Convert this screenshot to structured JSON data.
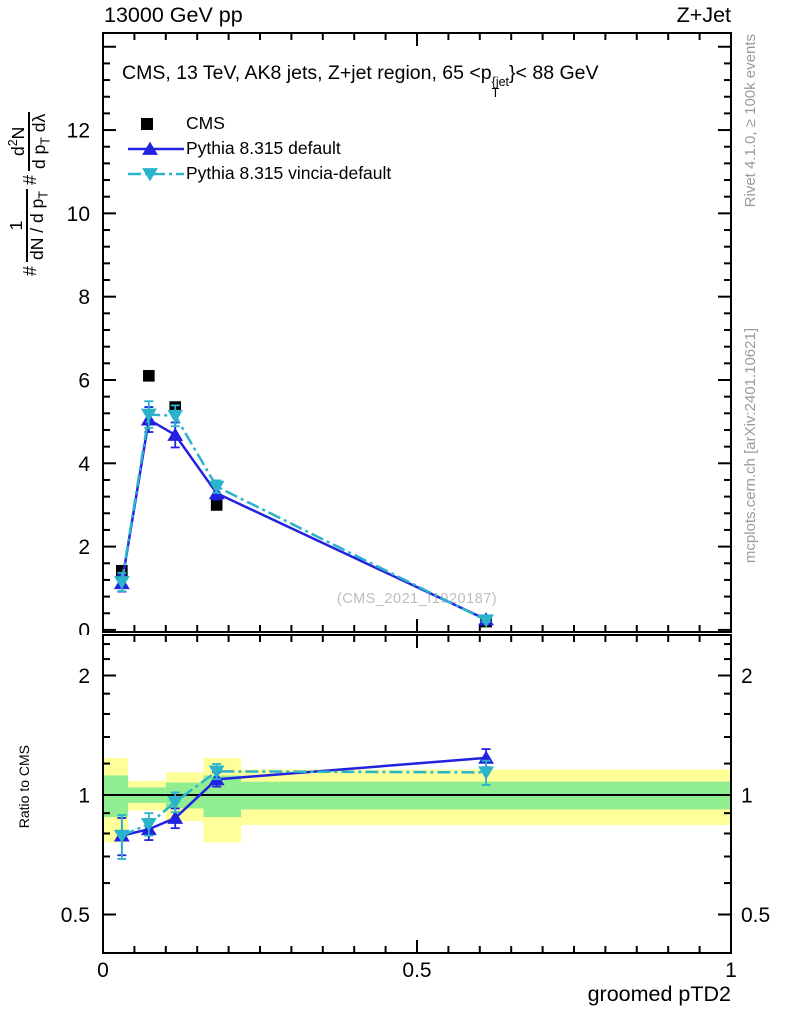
{
  "header": {
    "left": "13000 GeV pp",
    "right": "Z+Jet"
  },
  "panel_title": {
    "prefix": "CMS, 13 TeV, AK8 jets, Z+jet region, 65 <p",
    "sup": "{jet",
    "sub": "T",
    "suffix": "}< 88 GeV"
  },
  "y_axis_label": {
    "hash1": "#",
    "frac1_num": "1",
    "frac1_den_main": "dN / d p",
    "frac1_den_sub": "T",
    "hash2": "#",
    "frac2_num_main": "d",
    "frac2_num_sup": "2",
    "frac2_num_tail": "N",
    "frac2_den_main": "d p",
    "frac2_den_sub": "T",
    "frac2_den_tail": " dλ"
  },
  "legend": {
    "items": [
      {
        "label": "CMS",
        "marker": "square",
        "color": "#000000",
        "line": "none"
      },
      {
        "label": "Pythia 8.315 default",
        "marker": "triangle-up",
        "color": "#2222e0",
        "line": "solid"
      },
      {
        "label": "Pythia 8.315 vincia-default",
        "marker": "triangle-down",
        "color": "#2bb3cb",
        "line": "dashdot"
      }
    ]
  },
  "side_notes": {
    "top": "Rivet 4.1.0, ≥ 100k events",
    "bottom": "mcplots.cern.ch [arXiv:2401.10621]"
  },
  "watermark": "(CMS_2021_I1920187)",
  "x_axis": {
    "label": "groomed pTD2",
    "ticks": [
      {
        "v": 0,
        "label": "0"
      },
      {
        "v": 0.5,
        "label": "0.5"
      },
      {
        "v": 1,
        "label": "1"
      }
    ],
    "minor_step": 0.05,
    "range": [
      0,
      1
    ]
  },
  "ratio_axis": {
    "ylabel": "Ratio to CMS",
    "ticks_left": [
      "0.5",
      "1",
      "2"
    ],
    "ticks_right": [
      "0.5",
      "1",
      "2"
    ]
  },
  "colors": {
    "blue": "#2222e0",
    "cyan": "#2bb3cb",
    "yellow": "#ffff99",
    "green": "#90ee90",
    "notes": "#9b9b9b",
    "watermark": "#bdbdbd"
  },
  "chart_data": [
    {
      "type": "line",
      "panel": "main",
      "title": "CMS, 13 TeV, AK8 jets, Z+jet region, 65 < pT^{jet} < 88 GeV",
      "xlabel": "groomed pTD2",
      "ylabel": "# 1/(dN/dpT) d2N/(dpT dλ)",
      "xlim": [
        0,
        1
      ],
      "ylim": [
        -0.05,
        14.33
      ],
      "grid": false,
      "legend_position": "top-left",
      "x": [
        0.03,
        0.073,
        0.115,
        0.181,
        0.61
      ],
      "series": [
        {
          "name": "CMS",
          "marker": "square",
          "color": "#000000",
          "line": "none",
          "values": [
            1.42,
            6.1,
            5.35,
            3.0,
            0.2
          ]
        },
        {
          "name": "Pythia 8.315 default",
          "marker": "triangle-up",
          "color": "#2222e0",
          "line": "solid",
          "values": [
            1.12,
            5.05,
            4.68,
            3.28,
            0.25
          ],
          "yerr": [
            0.2,
            0.3,
            0.3,
            0.15,
            0.04
          ]
        },
        {
          "name": "Pythia 8.315 vincia-default",
          "marker": "triangle-down",
          "color": "#2bb3cb",
          "line": "dashdot",
          "values": [
            1.15,
            5.17,
            5.14,
            3.44,
            0.23
          ],
          "yerr": [
            0.22,
            0.32,
            0.25,
            0.15,
            0.04
          ]
        }
      ],
      "y_ticks_major": [
        0,
        2,
        4,
        6,
        8,
        10,
        12
      ],
      "y_minor_step": 0.4,
      "x_ticks_major": [
        0,
        0.5,
        1
      ],
      "x_minor_step": 0.05
    },
    {
      "type": "line",
      "panel": "ratio",
      "ylabel": "Ratio to CMS",
      "yscale": "log",
      "ylim": [
        0.403,
        2.53
      ],
      "baseline": 1,
      "x": [
        0.03,
        0.073,
        0.115,
        0.181,
        0.61
      ],
      "series": [
        {
          "name": "Pythia 8.315 default",
          "marker": "triangle-up",
          "color": "#2222e0",
          "line": "solid",
          "values": [
            0.79,
            0.82,
            0.875,
            1.095,
            1.24
          ],
          "yerr": [
            0.085,
            0.05,
            0.05,
            0.045,
            0.065
          ]
        },
        {
          "name": "Pythia 8.315 vincia-default",
          "marker": "triangle-down",
          "color": "#2bb3cb",
          "line": "dashdot",
          "values": [
            0.79,
            0.845,
            0.96,
            1.147,
            1.14
          ],
          "yerr": [
            0.1,
            0.055,
            0.055,
            0.05,
            0.08
          ]
        }
      ],
      "bands": [
        {
          "x0": 0.0,
          "x1": 0.04,
          "yellow": 0.24,
          "green": 0.12
        },
        {
          "x0": 0.04,
          "x1": 0.1,
          "yellow": 0.085,
          "green": 0.045
        },
        {
          "x0": 0.1,
          "x1": 0.16,
          "yellow": 0.14,
          "green": 0.075
        },
        {
          "x0": 0.16,
          "x1": 0.22,
          "yellow": 0.24,
          "green": 0.12
        },
        {
          "x0": 0.22,
          "x1": 1.0,
          "yellow": 0.16,
          "green": 0.08
        }
      ],
      "y_ticks_major": [
        0.5,
        1,
        2
      ],
      "y_ticks_minor": [
        0.5,
        0.6,
        0.7,
        0.8,
        0.9,
        1.2,
        1.4,
        1.6,
        1.8,
        2.2,
        2.4
      ]
    }
  ]
}
